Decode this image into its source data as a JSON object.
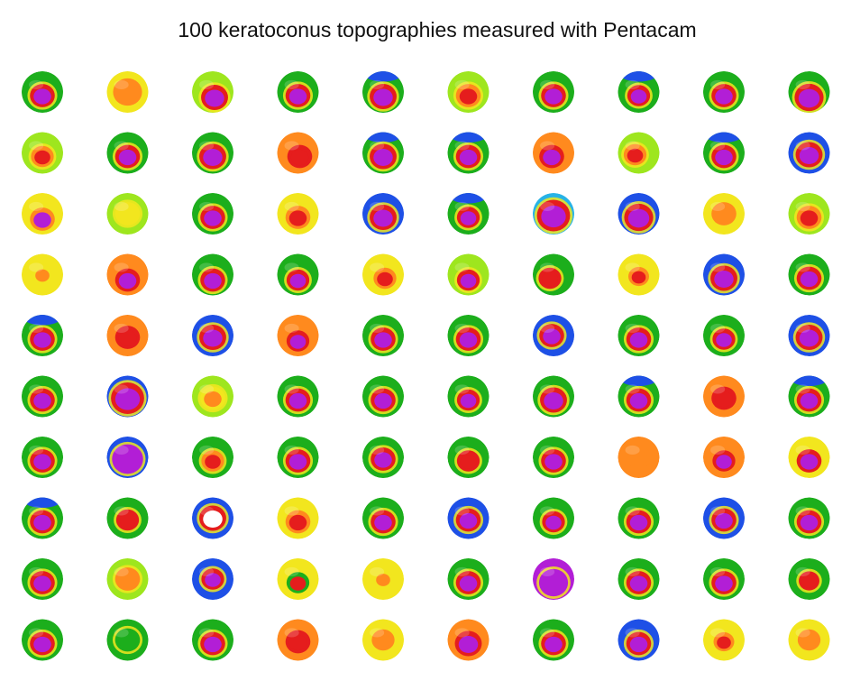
{
  "title": "100 keratoconus topographies measured with Pentacam",
  "grid": {
    "rows": 10,
    "cols": 10
  },
  "colors": {
    "purple": "#b21ed6",
    "red": "#e51d1d",
    "orange": "#ff8a1e",
    "yellow": "#f2e61e",
    "lime": "#9ee61e",
    "green": "#1cae1c",
    "darkgreen": "#0f7a1a",
    "blue": "#1e50e6",
    "cyan": "#27b3e6",
    "white": "#ffffff"
  },
  "maps": [
    {
      "bg": "green",
      "ring": "red",
      "core": "purple",
      "dx": 0,
      "dy": 4,
      "r": 0.5
    },
    {
      "bg": "yellow",
      "ring": "orange",
      "core": "orange",
      "dx": 0,
      "dy": 0,
      "r": 0.6
    },
    {
      "bg": "lime",
      "ring": "red",
      "core": "purple",
      "dx": 2,
      "dy": 6,
      "r": 0.55
    },
    {
      "bg": "green",
      "ring": "red",
      "core": "purple",
      "dx": 0,
      "dy": 4,
      "r": 0.5
    },
    {
      "bg": "green",
      "ring": "red",
      "core": "purple",
      "dx": 0,
      "dy": 5,
      "r": 0.55,
      "extra": "blue"
    },
    {
      "bg": "lime",
      "ring": "orange",
      "core": "red",
      "dx": 0,
      "dy": 4,
      "r": 0.5
    },
    {
      "bg": "green",
      "ring": "red",
      "core": "purple",
      "dx": 0,
      "dy": 4,
      "r": 0.5
    },
    {
      "bg": "green",
      "ring": "red",
      "core": "purple",
      "dx": 0,
      "dy": 4,
      "r": 0.45,
      "extra": "blue"
    },
    {
      "bg": "green",
      "ring": "red",
      "core": "purple",
      "dx": 0,
      "dy": 4,
      "r": 0.5
    },
    {
      "bg": "green",
      "ring": "red",
      "core": "purple",
      "dx": 0,
      "dy": 6,
      "r": 0.6
    },
    {
      "bg": "lime",
      "ring": "orange",
      "core": "red",
      "dx": 0,
      "dy": 4,
      "r": 0.45
    },
    {
      "bg": "green",
      "ring": "red",
      "core": "purple",
      "dx": 0,
      "dy": 4,
      "r": 0.5
    },
    {
      "bg": "green",
      "ring": "red",
      "core": "purple",
      "dx": 0,
      "dy": 4,
      "r": 0.55
    },
    {
      "bg": "orange",
      "ring": "red",
      "core": "red",
      "dx": 2,
      "dy": 4,
      "r": 0.5
    },
    {
      "bg": "green",
      "ring": "red",
      "core": "purple",
      "dx": 0,
      "dy": 4,
      "r": 0.55,
      "extra": "blue"
    },
    {
      "bg": "green",
      "ring": "red",
      "core": "purple",
      "dx": 0,
      "dy": 4,
      "r": 0.5,
      "extra": "blue"
    },
    {
      "bg": "orange",
      "ring": "red",
      "core": "purple",
      "dx": -2,
      "dy": 4,
      "r": 0.5
    },
    {
      "bg": "lime",
      "ring": "orange",
      "core": "red",
      "dx": -4,
      "dy": 2,
      "r": 0.45
    },
    {
      "bg": "green",
      "ring": "red",
      "core": "purple",
      "dx": 0,
      "dy": 4,
      "r": 0.5,
      "extra": "blue"
    },
    {
      "bg": "blue",
      "ring": "red",
      "core": "purple",
      "dx": 0,
      "dy": 2,
      "r": 0.55
    },
    {
      "bg": "yellow",
      "ring": "orange",
      "core": "purple",
      "dx": 0,
      "dy": 6,
      "r": 0.5
    },
    {
      "bg": "lime",
      "ring": "yellow",
      "core": "yellow",
      "dx": 0,
      "dy": 0,
      "r": 0.5
    },
    {
      "bg": "green",
      "ring": "red",
      "core": "purple",
      "dx": 0,
      "dy": 4,
      "r": 0.5
    },
    {
      "bg": "yellow",
      "ring": "orange",
      "core": "red",
      "dx": 0,
      "dy": 4,
      "r": 0.5
    },
    {
      "bg": "blue",
      "ring": "red",
      "core": "purple",
      "dx": 0,
      "dy": 4,
      "r": 0.55
    },
    {
      "bg": "green",
      "ring": "red",
      "core": "purple",
      "dx": 0,
      "dy": 4,
      "r": 0.45,
      "extra": "blue"
    },
    {
      "bg": "cyan",
      "ring": "red",
      "core": "purple",
      "dx": 0,
      "dy": 2,
      "r": 0.7
    },
    {
      "bg": "blue",
      "ring": "red",
      "core": "purple",
      "dx": 0,
      "dy": 4,
      "r": 0.6
    },
    {
      "bg": "yellow",
      "ring": "orange",
      "core": "orange",
      "dx": 0,
      "dy": 0,
      "r": 0.5
    },
    {
      "bg": "lime",
      "ring": "orange",
      "core": "red",
      "dx": 0,
      "dy": 4,
      "r": 0.5
    },
    {
      "bg": "yellow",
      "ring": "yellow",
      "core": "orange",
      "dx": 0,
      "dy": 0,
      "r": 0.4
    },
    {
      "bg": "orange",
      "ring": "red",
      "core": "purple",
      "dx": 0,
      "dy": 6,
      "r": 0.5
    },
    {
      "bg": "green",
      "ring": "red",
      "core": "purple",
      "dx": 0,
      "dy": 6,
      "r": 0.5
    },
    {
      "bg": "green",
      "ring": "red",
      "core": "purple",
      "dx": 0,
      "dy": 6,
      "r": 0.45
    },
    {
      "bg": "yellow",
      "ring": "orange",
      "core": "red",
      "dx": 2,
      "dy": 4,
      "r": 0.45
    },
    {
      "bg": "lime",
      "ring": "red",
      "core": "purple",
      "dx": 0,
      "dy": 6,
      "r": 0.45
    },
    {
      "bg": "green",
      "ring": "red",
      "core": "red",
      "dx": -4,
      "dy": 4,
      "r": 0.45
    },
    {
      "bg": "yellow",
      "ring": "orange",
      "core": "red",
      "dx": 0,
      "dy": 2,
      "r": 0.4
    },
    {
      "bg": "blue",
      "ring": "red",
      "core": "purple",
      "dx": 0,
      "dy": 4,
      "r": 0.55
    },
    {
      "bg": "green",
      "ring": "red",
      "core": "purple",
      "dx": 0,
      "dy": 4,
      "r": 0.5
    },
    {
      "bg": "green",
      "ring": "red",
      "core": "purple",
      "dx": 0,
      "dy": 4,
      "r": 0.5,
      "extra": "blue"
    },
    {
      "bg": "orange",
      "ring": "red",
      "core": "red",
      "dx": 0,
      "dy": 2,
      "r": 0.5
    },
    {
      "bg": "blue",
      "ring": "red",
      "core": "purple",
      "dx": 0,
      "dy": 2,
      "r": 0.55
    },
    {
      "bg": "orange",
      "ring": "red",
      "core": "purple",
      "dx": 0,
      "dy": 6,
      "r": 0.45
    },
    {
      "bg": "green",
      "ring": "red",
      "core": "purple",
      "dx": 0,
      "dy": 4,
      "r": 0.5
    },
    {
      "bg": "green",
      "ring": "red",
      "core": "purple",
      "dx": 0,
      "dy": 4,
      "r": 0.5
    },
    {
      "bg": "blue",
      "ring": "red",
      "core": "purple",
      "dx": -2,
      "dy": 0,
      "r": 0.5
    },
    {
      "bg": "green",
      "ring": "red",
      "core": "purple",
      "dx": 0,
      "dy": 4,
      "r": 0.5
    },
    {
      "bg": "green",
      "ring": "red",
      "core": "purple",
      "dx": 0,
      "dy": 4,
      "r": 0.45
    },
    {
      "bg": "blue",
      "ring": "red",
      "core": "purple",
      "dx": 0,
      "dy": 2,
      "r": 0.55
    },
    {
      "bg": "green",
      "ring": "red",
      "core": "purple",
      "dx": 0,
      "dy": 4,
      "r": 0.5
    },
    {
      "bg": "blue",
      "ring": "red",
      "core": "purple",
      "dx": 0,
      "dy": 2,
      "r": 0.7
    },
    {
      "bg": "lime",
      "ring": "yellow",
      "core": "orange",
      "dx": 0,
      "dy": 2,
      "r": 0.5
    },
    {
      "bg": "green",
      "ring": "red",
      "core": "purple",
      "dx": 0,
      "dy": 4,
      "r": 0.5
    },
    {
      "bg": "green",
      "ring": "red",
      "core": "purple",
      "dx": 0,
      "dy": 4,
      "r": 0.5
    },
    {
      "bg": "green",
      "ring": "red",
      "core": "purple",
      "dx": 0,
      "dy": 4,
      "r": 0.45
    },
    {
      "bg": "green",
      "ring": "red",
      "core": "purple",
      "dx": 0,
      "dy": 4,
      "r": 0.55
    },
    {
      "bg": "green",
      "ring": "red",
      "core": "purple",
      "dx": 0,
      "dy": 4,
      "r": 0.5,
      "extra": "blue"
    },
    {
      "bg": "orange",
      "ring": "red",
      "core": "red",
      "dx": 0,
      "dy": 2,
      "r": 0.5
    },
    {
      "bg": "green",
      "ring": "red",
      "core": "purple",
      "dx": 0,
      "dy": 4,
      "r": 0.5,
      "extra": "blue"
    },
    {
      "bg": "green",
      "ring": "red",
      "core": "purple",
      "dx": 0,
      "dy": 4,
      "r": 0.5
    },
    {
      "bg": "blue",
      "ring": "purple",
      "core": "purple",
      "dx": 0,
      "dy": 2,
      "r": 0.65
    },
    {
      "bg": "green",
      "ring": "orange",
      "core": "red",
      "dx": 0,
      "dy": 4,
      "r": 0.45
    },
    {
      "bg": "green",
      "ring": "red",
      "core": "purple",
      "dx": 0,
      "dy": 4,
      "r": 0.5
    },
    {
      "bg": "green",
      "ring": "red",
      "core": "purple",
      "dx": 0,
      "dy": 2,
      "r": 0.5
    },
    {
      "bg": "green",
      "ring": "red",
      "core": "red",
      "dx": 0,
      "dy": 4,
      "r": 0.45
    },
    {
      "bg": "green",
      "ring": "red",
      "core": "purple",
      "dx": 0,
      "dy": 4,
      "r": 0.5
    },
    {
      "bg": "orange",
      "ring": "orange",
      "core": "orange",
      "dx": 0,
      "dy": 0,
      "r": 0.5
    },
    {
      "bg": "orange",
      "ring": "red",
      "core": "purple",
      "dx": 0,
      "dy": 4,
      "r": 0.45
    },
    {
      "bg": "yellow",
      "ring": "red",
      "core": "purple",
      "dx": 0,
      "dy": 4,
      "r": 0.5
    },
    {
      "bg": "green",
      "ring": "red",
      "core": "purple",
      "dx": 0,
      "dy": 4,
      "r": 0.5,
      "extra": "blue"
    },
    {
      "bg": "green",
      "ring": "red",
      "core": "red",
      "dx": 0,
      "dy": 2,
      "r": 0.45
    },
    {
      "bg": "blue",
      "ring": "red",
      "core": "white",
      "dx": 0,
      "dy": 0,
      "r": 0.55
    },
    {
      "bg": "yellow",
      "ring": "orange",
      "core": "red",
      "dx": 0,
      "dy": 4,
      "r": 0.5
    },
    {
      "bg": "green",
      "ring": "red",
      "core": "purple",
      "dx": 0,
      "dy": 4,
      "r": 0.5
    },
    {
      "bg": "blue",
      "ring": "red",
      "core": "purple",
      "dx": 0,
      "dy": 2,
      "r": 0.5
    },
    {
      "bg": "green",
      "ring": "red",
      "core": "purple",
      "dx": 0,
      "dy": 4,
      "r": 0.45
    },
    {
      "bg": "green",
      "ring": "red",
      "core": "purple",
      "dx": 0,
      "dy": 4,
      "r": 0.5
    },
    {
      "bg": "blue",
      "ring": "red",
      "core": "purple",
      "dx": 0,
      "dy": 2,
      "r": 0.5
    },
    {
      "bg": "green",
      "ring": "red",
      "core": "purple",
      "dx": 0,
      "dy": 4,
      "r": 0.5
    },
    {
      "bg": "green",
      "ring": "red",
      "core": "purple",
      "dx": 0,
      "dy": 4,
      "r": 0.5
    },
    {
      "bg": "lime",
      "ring": "orange",
      "core": "orange",
      "dx": 0,
      "dy": 0,
      "r": 0.5
    },
    {
      "bg": "blue",
      "ring": "red",
      "core": "purple",
      "dx": 0,
      "dy": 0,
      "r": 0.45
    },
    {
      "bg": "yellow",
      "ring": "green",
      "core": "red",
      "dx": 0,
      "dy": 4,
      "r": 0.45
    },
    {
      "bg": "yellow",
      "ring": "yellow",
      "core": "orange",
      "dx": 0,
      "dy": 0,
      "r": 0.4
    },
    {
      "bg": "green",
      "ring": "red",
      "core": "purple",
      "dx": 0,
      "dy": 4,
      "r": 0.5
    },
    {
      "bg": "purple",
      "ring": "purple",
      "core": "purple",
      "dx": 0,
      "dy": 4,
      "r": 0.6
    },
    {
      "bg": "green",
      "ring": "red",
      "core": "purple",
      "dx": 0,
      "dy": 4,
      "r": 0.5
    },
    {
      "bg": "green",
      "ring": "red",
      "core": "purple",
      "dx": 0,
      "dy": 4,
      "r": 0.5
    },
    {
      "bg": "green",
      "ring": "red",
      "core": "red",
      "dx": 0,
      "dy": 2,
      "r": 0.4
    },
    {
      "bg": "green",
      "ring": "red",
      "core": "purple",
      "dx": 0,
      "dy": 4,
      "r": 0.5
    },
    {
      "bg": "green",
      "ring": "green",
      "core": "green",
      "dx": 0,
      "dy": 0,
      "r": 0.5
    },
    {
      "bg": "green",
      "ring": "red",
      "core": "purple",
      "dx": 0,
      "dy": 4,
      "r": 0.5
    },
    {
      "bg": "orange",
      "ring": "red",
      "core": "red",
      "dx": 0,
      "dy": 2,
      "r": 0.5
    },
    {
      "bg": "yellow",
      "ring": "orange",
      "core": "orange",
      "dx": 0,
      "dy": 0,
      "r": 0.45
    },
    {
      "bg": "orange",
      "ring": "red",
      "core": "purple",
      "dx": 0,
      "dy": 4,
      "r": 0.55
    },
    {
      "bg": "green",
      "ring": "red",
      "core": "purple",
      "dx": 0,
      "dy": 4,
      "r": 0.5
    },
    {
      "bg": "blue",
      "ring": "red",
      "core": "purple",
      "dx": 0,
      "dy": 4,
      "r": 0.5
    },
    {
      "bg": "yellow",
      "ring": "orange",
      "core": "red",
      "dx": 0,
      "dy": 2,
      "r": 0.4
    },
    {
      "bg": "yellow",
      "ring": "orange",
      "core": "orange",
      "dx": 0,
      "dy": 0,
      "r": 0.45
    }
  ]
}
